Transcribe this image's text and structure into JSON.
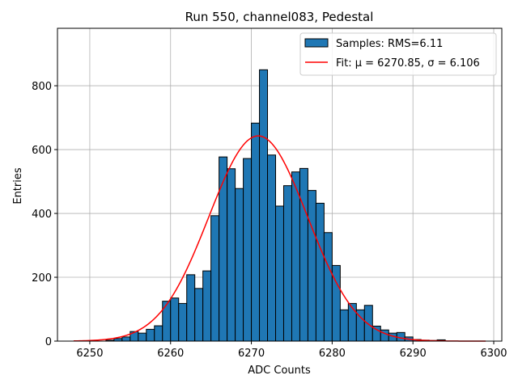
{
  "chart_data": {
    "type": "bar",
    "title": "Run 550, channel083, Pedestal",
    "xlabel": "ADC Counts",
    "ylabel": "Entries",
    "xlim": [
      6246,
      6301
    ],
    "ylim": [
      0,
      980
    ],
    "xticks": [
      6250,
      6260,
      6270,
      6280,
      6290,
      6300
    ],
    "yticks": [
      0,
      200,
      400,
      600,
      800
    ],
    "grid": true,
    "legend_position": "top-right",
    "bin_width": 1,
    "colors": {
      "bars": "#1f77b4",
      "bar_edge": "#000000",
      "fit": "#ff0000",
      "grid": "#b0b0b0"
    },
    "series": [
      {
        "name": "Samples: RMS=6.11",
        "kind": "histogram",
        "bin_starts": [
          6252,
          6253,
          6254,
          6255,
          6256,
          6257,
          6258,
          6259,
          6260,
          6261,
          6262,
          6263,
          6264,
          6265,
          6266,
          6267,
          6268,
          6269,
          6270,
          6271,
          6272,
          6273,
          6274,
          6275,
          6276,
          6277,
          6278,
          6279,
          6280,
          6281,
          6282,
          6283,
          6284,
          6285,
          6286,
          6287,
          6288,
          6289,
          6290,
          6291,
          6292,
          6293
        ],
        "values": [
          3,
          8,
          13,
          30,
          25,
          37,
          48,
          125,
          135,
          118,
          208,
          165,
          220,
          393,
          577,
          540,
          478,
          572,
          683,
          850,
          583,
          423,
          487,
          530,
          541,
          472,
          432,
          340,
          237,
          98,
          118,
          98,
          112,
          47,
          35,
          25,
          27,
          13,
          5,
          3,
          2,
          4
        ]
      },
      {
        "name": "Fit: μ = 6270.85, σ = 6.106",
        "kind": "gaussian",
        "mu": 6270.85,
        "sigma": 6.106,
        "amplitude": 643,
        "x_range": [
          6248,
          6299
        ]
      }
    ]
  }
}
